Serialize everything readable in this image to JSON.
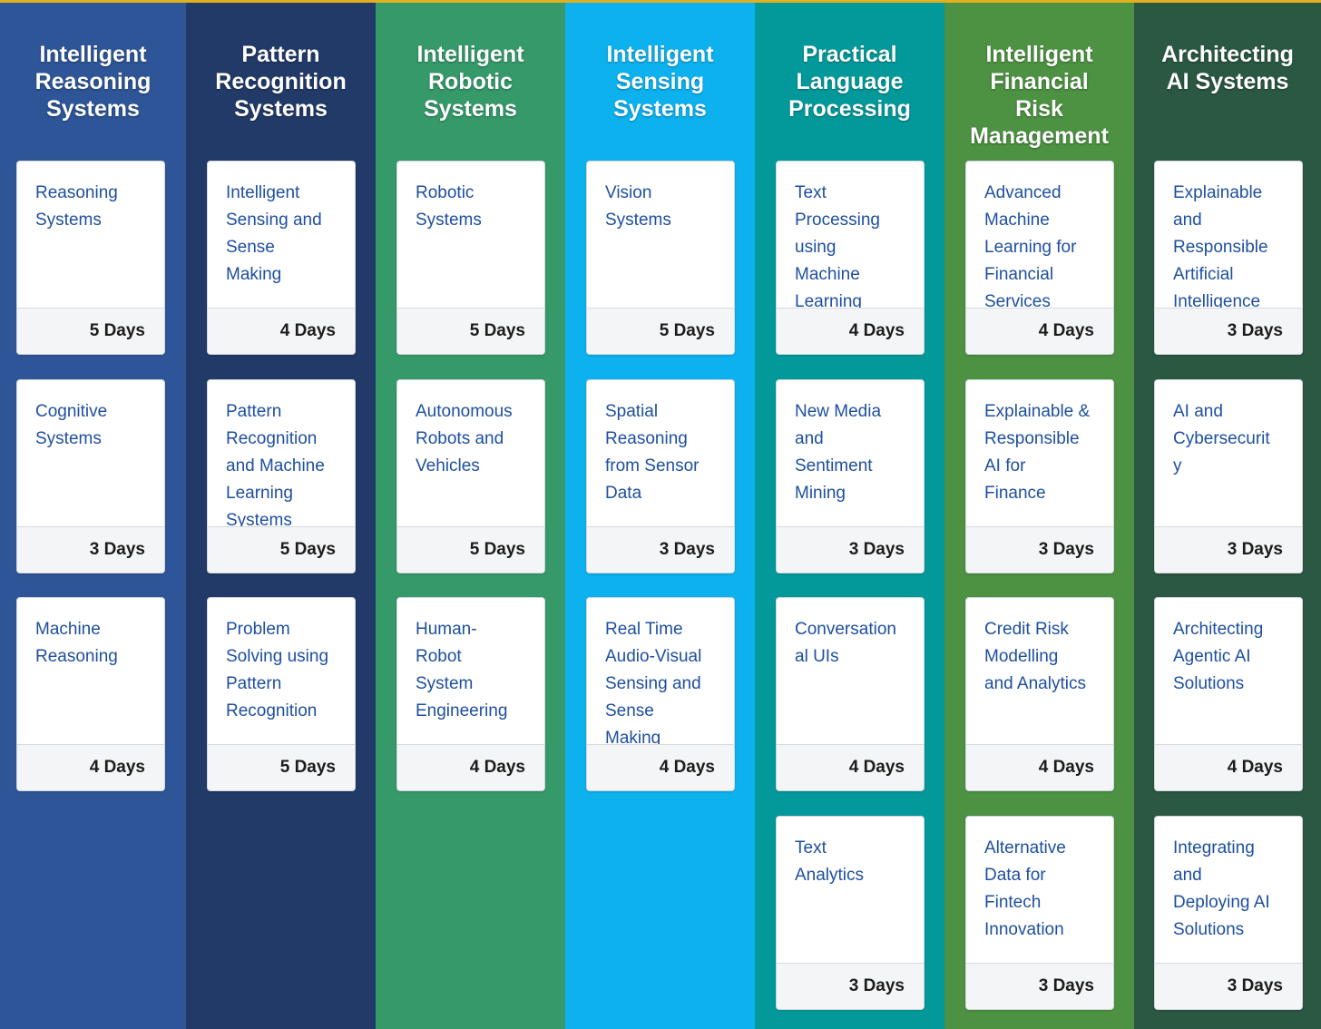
{
  "columns": [
    {
      "title": "Intelligent\nReasoning\nSystems",
      "color": "#2e5597",
      "courses": [
        {
          "title": "Reasoning\nSystems",
          "duration": "5 Days"
        },
        {
          "title": "Cognitive\nSystems",
          "duration": "3 Days"
        },
        {
          "title": "Machine\nReasoning",
          "duration": "4 Days"
        }
      ]
    },
    {
      "title": "Pattern\nRecognition\nSystems",
      "color": "#223a68",
      "courses": [
        {
          "title": "Intelligent\nSensing and\nSense\nMaking",
          "duration": "4 Days"
        },
        {
          "title": "Pattern\nRecognition\nand Machine\nLearning\nSystems",
          "duration": "5 Days"
        },
        {
          "title": "Problem\nSolving using\nPattern\nRecognition",
          "duration": "5 Days"
        }
      ]
    },
    {
      "title": "Intelligent\nRobotic\nSystems",
      "color": "#36996a",
      "courses": [
        {
          "title": "Robotic\nSystems",
          "duration": "5 Days"
        },
        {
          "title": "Autonomous\nRobots and\nVehicles",
          "duration": "5 Days"
        },
        {
          "title": "Human-\nRobot\nSystem\nEngineering",
          "duration": "4 Days"
        }
      ]
    },
    {
      "title": "Intelligent\nSensing\nSystems",
      "color": "#0db1ee",
      "courses": [
        {
          "title": "Vision\nSystems",
          "duration": "5 Days"
        },
        {
          "title": "Spatial\nReasoning\nfrom Sensor\nData",
          "duration": "3 Days"
        },
        {
          "title": "Real Time\nAudio-Visual\nSensing and\nSense\nMaking",
          "duration": "4 Days"
        }
      ]
    },
    {
      "title": "Practical\nLanguage\nProcessing",
      "color": "#03999a",
      "courses": [
        {
          "title": "Text\nProcessing\nusing\nMachine\nLearning",
          "duration": "4 Days"
        },
        {
          "title": "New Media\nand\nSentiment\nMining",
          "duration": "3 Days"
        },
        {
          "title": "Conversation\nal UIs",
          "duration": "4 Days"
        },
        {
          "title": "Text\nAnalytics",
          "duration": "3 Days"
        }
      ]
    },
    {
      "title": "Intelligent\nFinancial\nRisk\nManagement",
      "color": "#4d9142",
      "courses": [
        {
          "title": "Advanced\nMachine\nLearning for\nFinancial\nServices",
          "duration": "4 Days"
        },
        {
          "title": "Explainable &\nResponsible\nAI for\nFinance",
          "duration": "3 Days"
        },
        {
          "title": "Credit Risk\nModelling\nand Analytics",
          "duration": "4 Days"
        },
        {
          "title": "Alternative\nData for\nFintech\nInnovation",
          "duration": "3 Days"
        }
      ]
    },
    {
      "title": "Architecting\nAI Systems",
      "color": "#2b5842",
      "courses": [
        {
          "title": "Explainable\nand\nResponsible\nArtificial\nIntelligence",
          "duration": "3 Days"
        },
        {
          "title": "AI and\nCybersecurit\ny",
          "duration": "3 Days"
        },
        {
          "title": "Architecting\nAgentic AI\nSolutions",
          "duration": "4 Days"
        },
        {
          "title": "Integrating\nand\nDeploying AI\nSolutions",
          "duration": "3 Days"
        }
      ]
    }
  ]
}
